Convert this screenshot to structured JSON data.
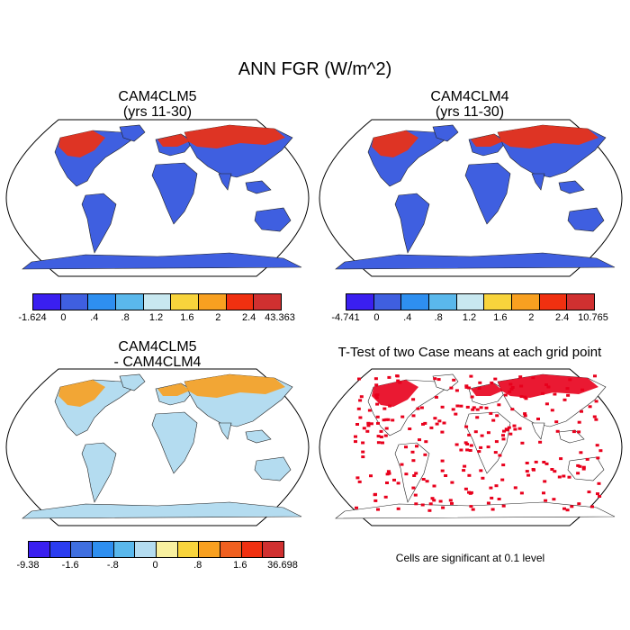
{
  "figure": {
    "title": "ANN FGR (W/m^2)"
  },
  "panels": [
    {
      "id": "p1",
      "title_line1": "CAM4CLM5",
      "title_line2": "(yrs 11-30)",
      "colorbar": {
        "colors": [
          "#3a1ff0",
          "#3f5fe0",
          "#2e8ff0",
          "#5ab8ec",
          "#c8e8f0",
          "#f8d43c",
          "#f8a020",
          "#f03010",
          "#d03030"
        ],
        "ticks": [
          "-1.624",
          "0",
          ".4",
          ".8",
          "1.2",
          "1.6",
          "2",
          "2.4",
          "43.363"
        ]
      }
    },
    {
      "id": "p2",
      "title_line1": "CAM4CLM4",
      "title_line2": "(yrs 11-30)",
      "colorbar": {
        "colors": [
          "#3a1ff0",
          "#3f5fe0",
          "#2e8ff0",
          "#5ab8ec",
          "#c8e8f0",
          "#f8d43c",
          "#f8a020",
          "#f03010",
          "#d03030"
        ],
        "ticks": [
          "-4.741",
          "0",
          ".4",
          ".8",
          "1.2",
          "1.6",
          "2",
          "2.4",
          "10.765"
        ]
      }
    },
    {
      "id": "p3",
      "title_line1": "CAM4CLM5",
      "title_line2": "- CAM4CLM4",
      "colorbar": {
        "colors": [
          "#3a1ff0",
          "#2a3cf0",
          "#3f6fe0",
          "#2e8ff0",
          "#5ab8ec",
          "#b4dcf0",
          "#f8f0a0",
          "#f8d43c",
          "#f8a020",
          "#f06020",
          "#f03010",
          "#d03030"
        ],
        "ticks": [
          "-9.38",
          "-1.6",
          "-.8",
          "0",
          ".8",
          "1.6",
          "36.698"
        ]
      }
    },
    {
      "id": "p4",
      "title_line1": "T-Test of two Case means at each grid point",
      "title_line2": "",
      "note": "Cells are significant at 0.1 level"
    }
  ],
  "map_colors": {
    "p1": {
      "base": "#3f5fe0",
      "warm": "#f03010",
      "hot": "#d03030",
      "mid": "#f8a020",
      "cool": "#5ab8ec"
    },
    "p2": {
      "base": "#3f5fe0",
      "warm": "#f03010",
      "hot": "#d03030",
      "mid": "#f8a020",
      "cool": "#5ab8ec"
    },
    "p3": {
      "base": "#b4dcf0",
      "warm": "#f8a020",
      "hot": "#f06020",
      "mid": "#f8f0a0",
      "cool": "#5ab8ec"
    },
    "p4": {
      "base": "#ffffff",
      "warm": "#e8001c",
      "hot": "#e8001c",
      "mid": "#e8001c",
      "cool": "#ffffff"
    }
  }
}
